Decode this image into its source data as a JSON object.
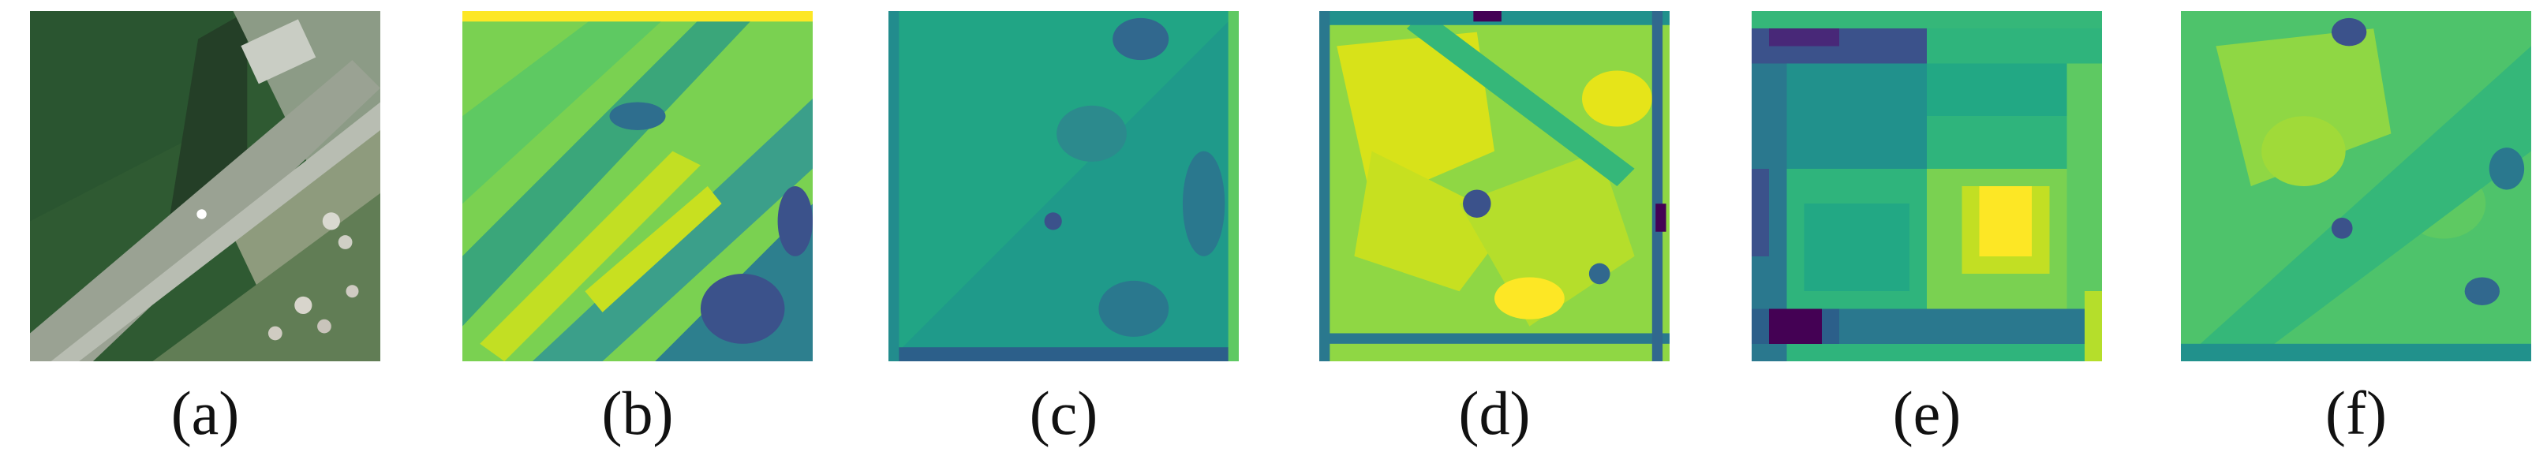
{
  "colormap": [
    "#440154",
    "#3b528b",
    "#21918c",
    "#5ec962",
    "#fde725"
  ],
  "panels": [
    {
      "label": "(a)",
      "content": "aerial-photo"
    },
    {
      "label": "(b)",
      "content": "heatmap"
    },
    {
      "label": "(c)",
      "content": "heatmap"
    },
    {
      "label": "(d)",
      "content": "heatmap"
    },
    {
      "label": "(e)",
      "content": "heatmap"
    },
    {
      "label": "(f)",
      "content": "heatmap"
    }
  ]
}
